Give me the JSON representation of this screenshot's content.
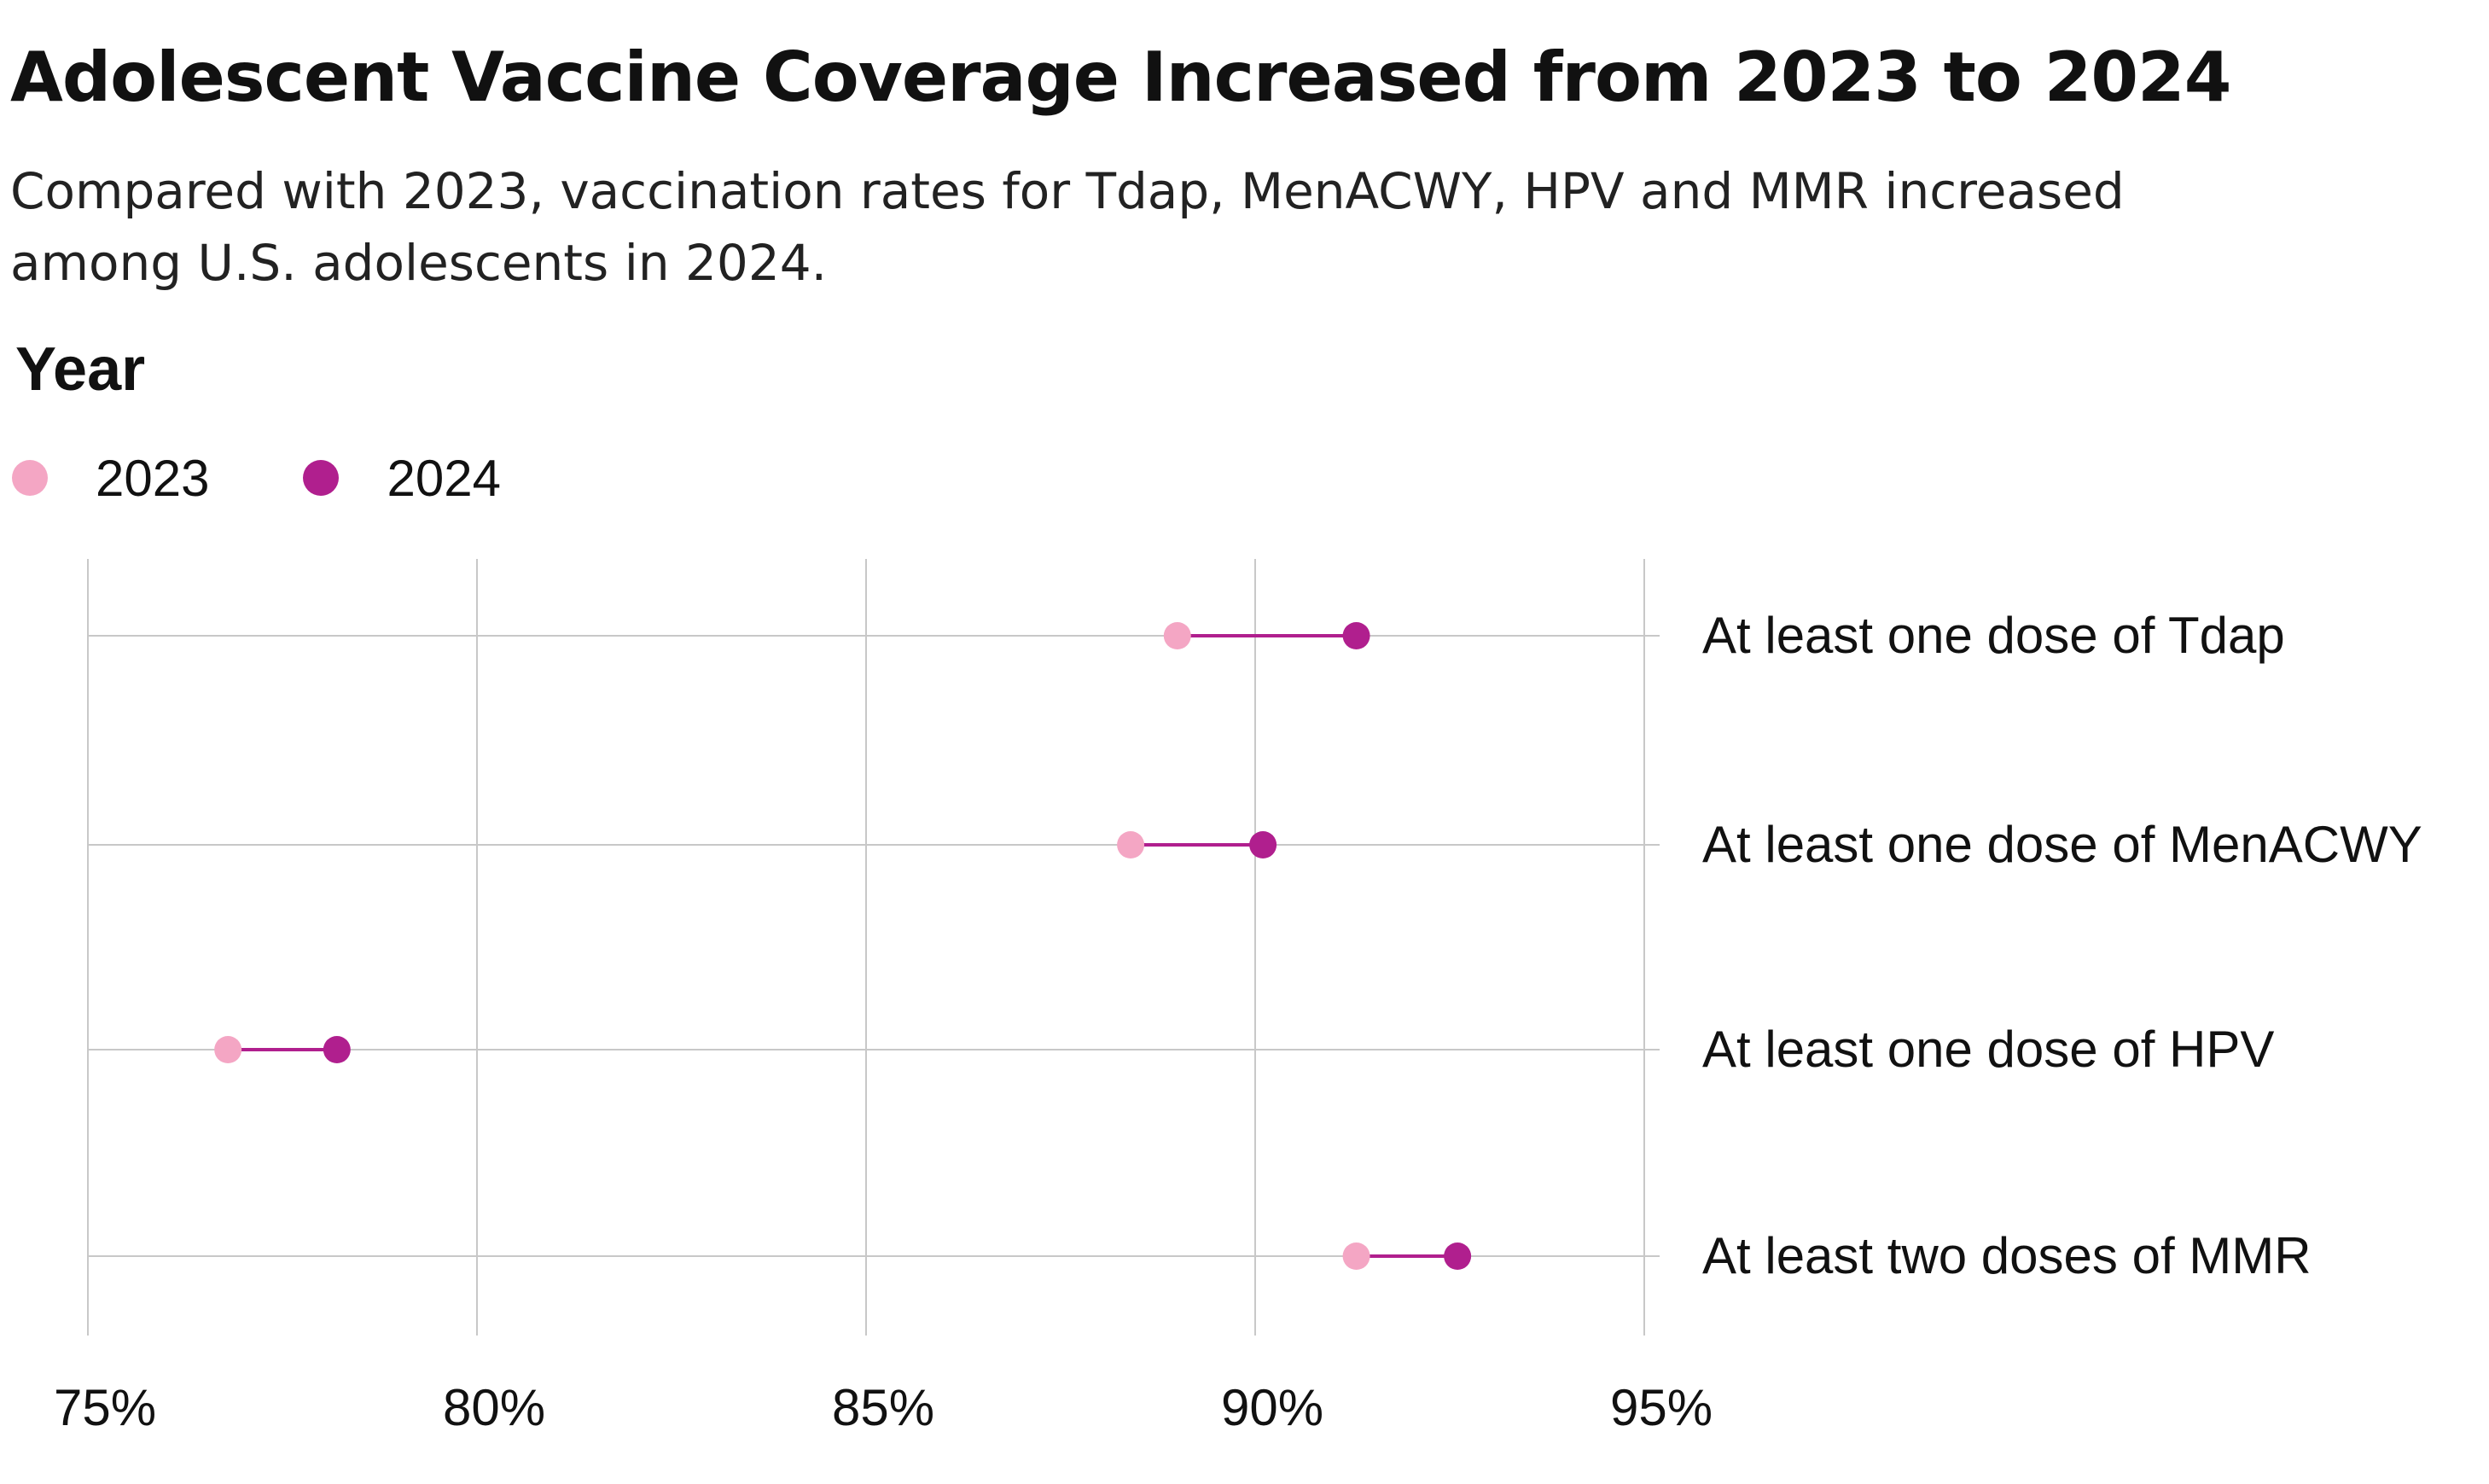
{
  "title": "Adolescent Vaccine Coverage Increased from 2023 to 2024",
  "subtitle": "Compared with 2023, vaccination rates for Tdap, MenACWY, HPV and MMR increased among U.S. adolescents in 2024.",
  "legend": {
    "title": "Year",
    "items": [
      {
        "label": "2023",
        "color": "#f4a6c4"
      },
      {
        "label": "2024",
        "color": "#b01f8e"
      }
    ]
  },
  "chart_data": {
    "type": "dumbbell",
    "title": "Adolescent Vaccine Coverage Increased from 2023 to 2024",
    "categories": [
      "At least one dose of Tdap",
      "At least one dose of MenACWY",
      "At least one dose of HPV",
      "At least two doses of MMR"
    ],
    "series": [
      {
        "name": "2023",
        "color": "#f4a6c4",
        "values": [
          89.0,
          88.4,
          76.8,
          91.3
        ]
      },
      {
        "name": "2024",
        "color": "#b01f8e",
        "values": [
          91.3,
          90.1,
          78.2,
          92.6
        ]
      }
    ],
    "connector_color": "#b01f8e",
    "xlim": [
      75,
      95
    ],
    "xticks": [
      75,
      80,
      85,
      90,
      95
    ],
    "xtick_labels": [
      "75%",
      "80%",
      "85%",
      "90%",
      "95%"
    ],
    "grid": true,
    "legend_position": "top-left"
  }
}
